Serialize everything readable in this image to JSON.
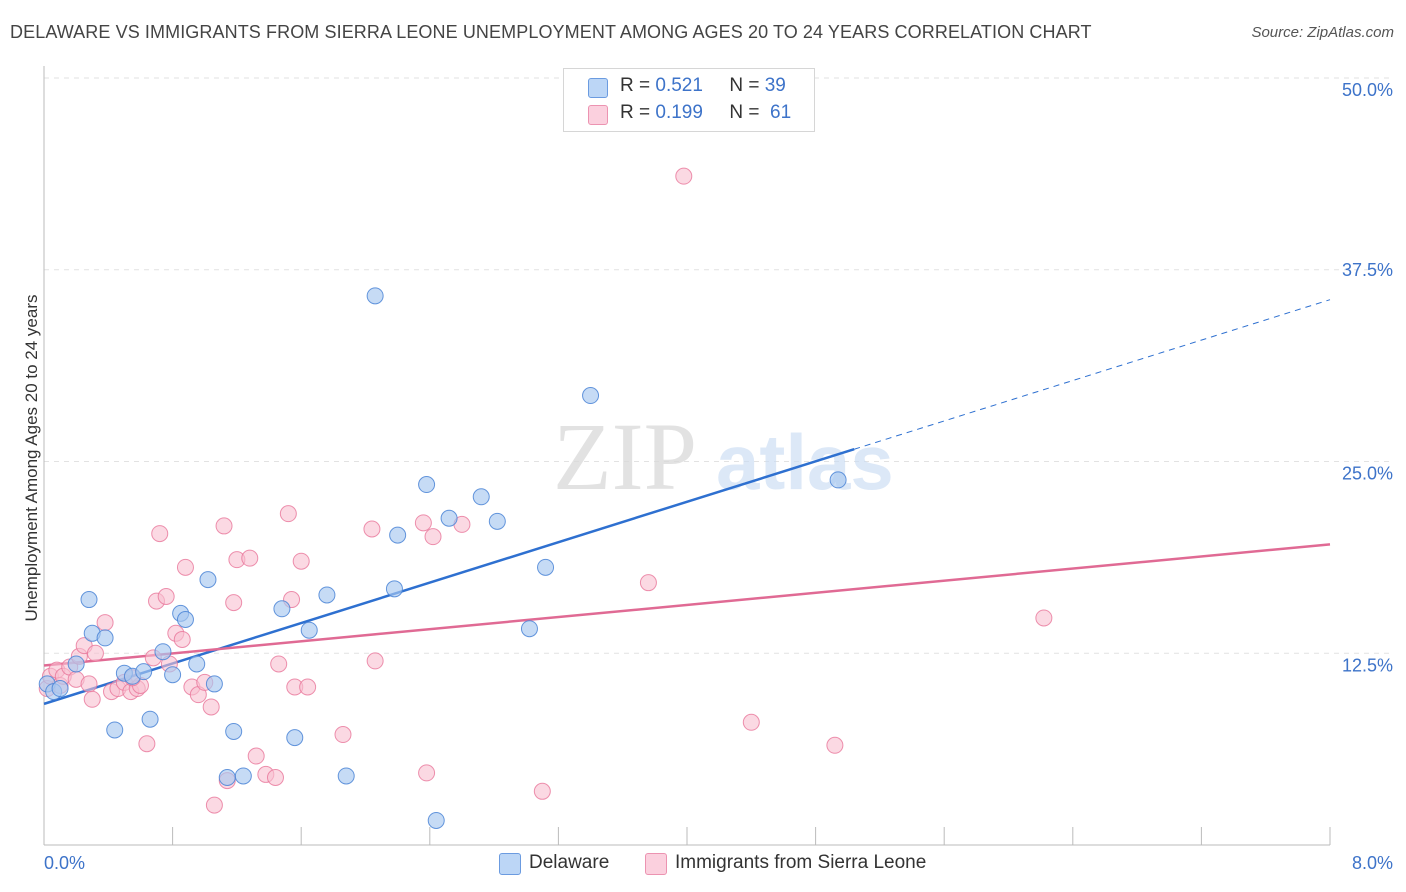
{
  "title": "DELAWARE VS IMMIGRANTS FROM SIERRA LEONE UNEMPLOYMENT AMONG AGES 20 TO 24 YEARS CORRELATION CHART",
  "source": "Source: ZipAtlas.com",
  "watermark": {
    "zip": "ZIP",
    "atlas": "atlas"
  },
  "legend": {
    "r_label": "R =",
    "n_label": "N =",
    "delaware": {
      "r": "0.521",
      "n": "39"
    },
    "sierra": {
      "r": "0.199",
      "n": "61"
    }
  },
  "colors": {
    "delaware_fill": "#a8c8f0",
    "delaware_stroke": "#4a84d6",
    "delaware_line": "#2e70d0",
    "sierra_fill": "#f8bfd0",
    "sierra_stroke": "#e8769a",
    "sierra_line": "#e06a94",
    "tick_label": "#3d73c9",
    "grid": "#e2e2e2"
  },
  "chart_data": {
    "type": "scatter",
    "title": "DELAWARE VS IMMIGRANTS FROM SIERRA LEONE UNEMPLOYMENT AMONG AGES 20 TO 24 YEARS CORRELATION CHART",
    "xlabel": "",
    "ylabel": "Unemployment Among Ages 20 to 24 years",
    "xlim": [
      0,
      8
    ],
    "ylim": [
      0,
      50
    ],
    "x_tick_labels": [
      "0.0%",
      "8.0%"
    ],
    "y_ticks": [
      12.5,
      25.0,
      37.5,
      50.0
    ],
    "y_tick_labels": [
      "12.5%",
      "25.0%",
      "37.5%",
      "50.0%"
    ],
    "series": [
      {
        "name": "Delaware",
        "points": [
          [
            0.02,
            10.5
          ],
          [
            0.06,
            10.0
          ],
          [
            0.1,
            10.2
          ],
          [
            0.2,
            11.8
          ],
          [
            0.28,
            16.0
          ],
          [
            0.3,
            13.8
          ],
          [
            0.38,
            13.5
          ],
          [
            0.44,
            7.5
          ],
          [
            0.5,
            11.2
          ],
          [
            0.55,
            11.0
          ],
          [
            0.62,
            11.3
          ],
          [
            0.66,
            8.2
          ],
          [
            0.74,
            12.6
          ],
          [
            0.8,
            11.1
          ],
          [
            0.85,
            15.1
          ],
          [
            0.88,
            14.7
          ],
          [
            0.95,
            11.8
          ],
          [
            1.02,
            17.3
          ],
          [
            1.06,
            10.5
          ],
          [
            1.14,
            4.4
          ],
          [
            1.18,
            7.4
          ],
          [
            1.24,
            4.5
          ],
          [
            1.48,
            15.4
          ],
          [
            1.56,
            7.0
          ],
          [
            1.65,
            14.0
          ],
          [
            1.76,
            16.3
          ],
          [
            1.88,
            4.5
          ],
          [
            2.06,
            35.8
          ],
          [
            2.18,
            16.7
          ],
          [
            2.2,
            20.2
          ],
          [
            2.38,
            23.5
          ],
          [
            2.44,
            1.6
          ],
          [
            2.52,
            21.3
          ],
          [
            2.72,
            22.7
          ],
          [
            2.82,
            21.1
          ],
          [
            3.02,
            14.1
          ],
          [
            3.12,
            18.1
          ],
          [
            3.4,
            29.3
          ],
          [
            4.94,
            23.8
          ]
        ]
      },
      {
        "name": "Immigrants from Sierra Leone",
        "points": [
          [
            0.02,
            10.2
          ],
          [
            0.04,
            11.0
          ],
          [
            0.08,
            11.4
          ],
          [
            0.1,
            10.4
          ],
          [
            0.12,
            11.0
          ],
          [
            0.16,
            11.6
          ],
          [
            0.2,
            10.8
          ],
          [
            0.22,
            12.3
          ],
          [
            0.25,
            13.0
          ],
          [
            0.28,
            10.5
          ],
          [
            0.3,
            9.5
          ],
          [
            0.32,
            12.5
          ],
          [
            0.38,
            14.5
          ],
          [
            0.42,
            10.0
          ],
          [
            0.46,
            10.2
          ],
          [
            0.5,
            10.6
          ],
          [
            0.54,
            10.0
          ],
          [
            0.58,
            10.2
          ],
          [
            0.6,
            10.4
          ],
          [
            0.64,
            6.6
          ],
          [
            0.68,
            12.2
          ],
          [
            0.7,
            15.9
          ],
          [
            0.72,
            20.3
          ],
          [
            0.78,
            11.8
          ],
          [
            0.76,
            16.2
          ],
          [
            0.82,
            13.8
          ],
          [
            0.86,
            13.4
          ],
          [
            0.88,
            18.1
          ],
          [
            0.92,
            10.3
          ],
          [
            0.96,
            9.8
          ],
          [
            1.0,
            10.6
          ],
          [
            1.04,
            9.0
          ],
          [
            1.06,
            2.6
          ],
          [
            1.12,
            20.8
          ],
          [
            1.14,
            4.2
          ],
          [
            1.18,
            15.8
          ],
          [
            1.2,
            18.6
          ],
          [
            1.28,
            18.7
          ],
          [
            1.32,
            5.8
          ],
          [
            1.38,
            4.6
          ],
          [
            1.44,
            4.4
          ],
          [
            1.46,
            11.8
          ],
          [
            1.52,
            21.6
          ],
          [
            1.54,
            16.0
          ],
          [
            1.56,
            10.3
          ],
          [
            1.6,
            18.5
          ],
          [
            1.64,
            10.3
          ],
          [
            1.86,
            7.2
          ],
          [
            2.04,
            20.6
          ],
          [
            2.06,
            12.0
          ],
          [
            2.36,
            21.0
          ],
          [
            2.38,
            4.7
          ],
          [
            2.42,
            20.1
          ],
          [
            2.6,
            20.9
          ],
          [
            3.1,
            3.5
          ],
          [
            3.76,
            17.1
          ],
          [
            3.98,
            43.6
          ],
          [
            4.4,
            8.0
          ],
          [
            4.92,
            6.5
          ],
          [
            6.22,
            14.8
          ],
          [
            0.55,
            10.9
          ]
        ]
      }
    ],
    "trendlines": [
      {
        "name": "Delaware",
        "x": [
          0,
          5.04
        ],
        "y": [
          9.2,
          25.8
        ],
        "dashed_extension_to_x": 8.0
      },
      {
        "name": "Immigrants from Sierra Leone",
        "x": [
          0,
          8.0
        ],
        "y": [
          11.7,
          19.6
        ]
      }
    ],
    "legend": [
      "Delaware",
      "Immigrants from Sierra Leone"
    ]
  }
}
